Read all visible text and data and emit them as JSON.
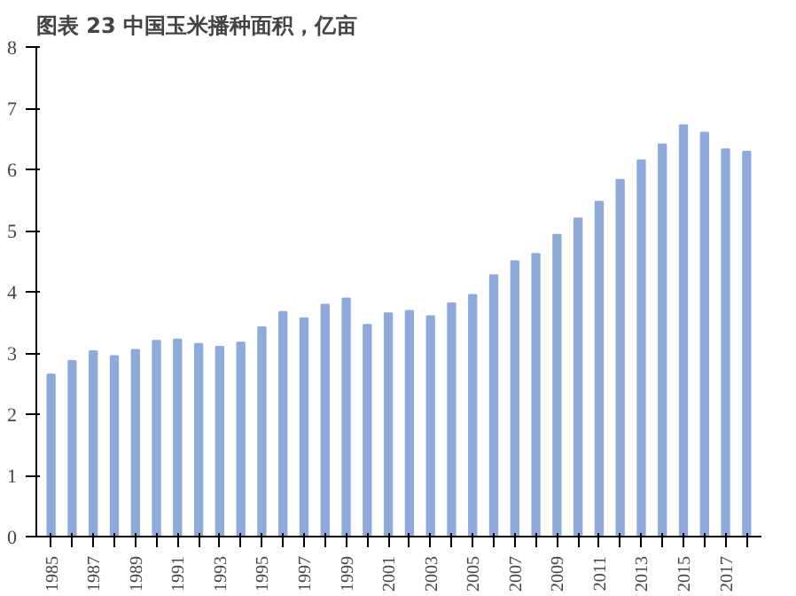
{
  "chart_data": {
    "type": "bar",
    "title": "图表 23  中国玉米播种面积，亿亩",
    "categories": [
      "1985",
      null,
      "1987",
      null,
      "1989",
      null,
      "1991",
      null,
      "1993",
      null,
      "1995",
      null,
      "1997",
      null,
      "1999",
      null,
      "2001",
      null,
      "2003",
      null,
      "2005",
      null,
      "2007",
      null,
      "2009",
      null,
      "2011",
      null,
      "2013",
      null,
      "2015",
      null,
      "2017",
      null
    ],
    "values": [
      2.65,
      2.87,
      3.03,
      2.95,
      3.05,
      3.2,
      3.22,
      3.15,
      3.1,
      3.17,
      3.42,
      3.67,
      3.57,
      3.79,
      3.89,
      3.46,
      3.65,
      3.69,
      3.6,
      3.81,
      3.95,
      4.27,
      4.5,
      4.62,
      4.93,
      5.2,
      5.47,
      5.83,
      6.15,
      6.41,
      6.72,
      6.6,
      6.33,
      6.29
    ],
    "color": "#8eaadb",
    "ylim": [
      0,
      8
    ],
    "yticks": [
      0,
      1,
      2,
      3,
      4,
      5,
      6,
      7,
      8
    ],
    "grid": false
  }
}
